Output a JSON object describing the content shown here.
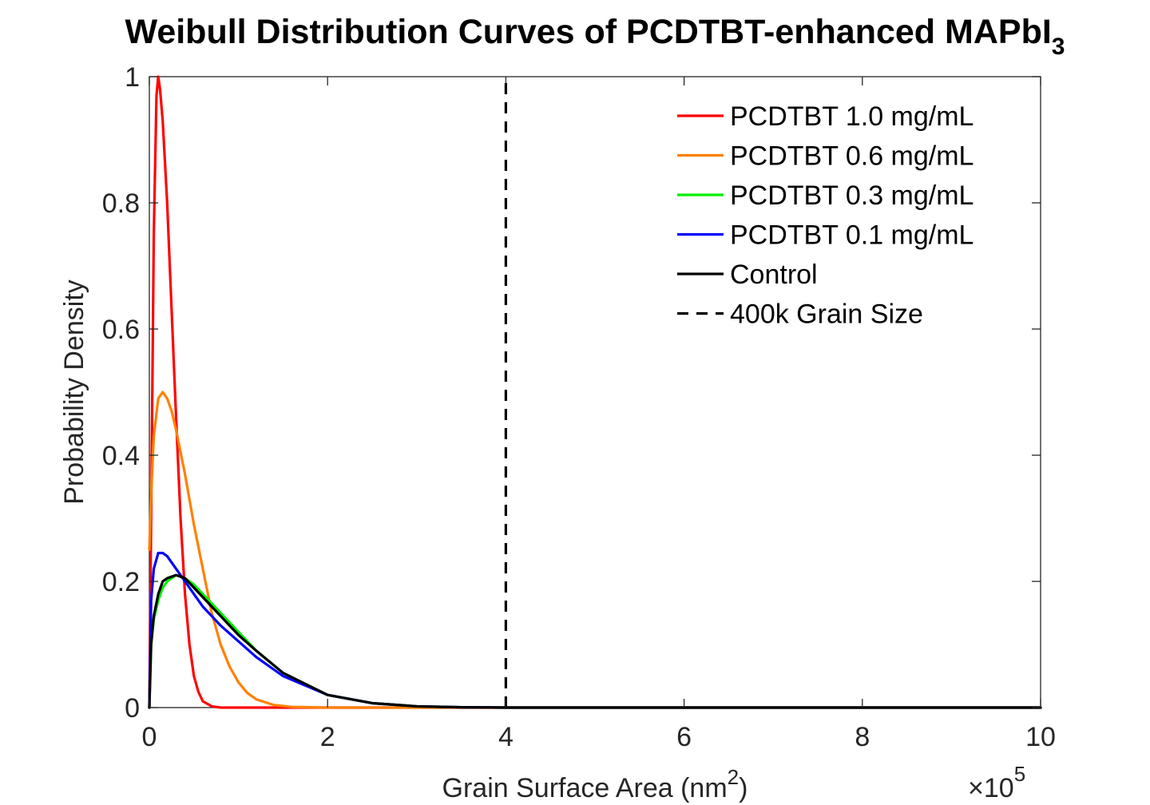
{
  "chart_data": {
    "type": "line",
    "title": "Weibull Distribution Curves of PCDTBT-enhanced MAPbI",
    "title_subscript": "3",
    "xlabel": "Grain Surface Area (nm",
    "xlabel_superscript": "2",
    "xlabel_suffix": ")",
    "x_multiplier_prefix": "×10",
    "x_multiplier_exponent": "5",
    "ylabel": "Probability Density",
    "xlim": [
      0,
      10
    ],
    "ylim": [
      0,
      1
    ],
    "xticks": [
      "0",
      "2",
      "4",
      "6",
      "8",
      "10"
    ],
    "yticks": [
      "0",
      "0.2",
      "0.4",
      "0.6",
      "0.8",
      "1"
    ],
    "grid": false,
    "legend_position": "top-right",
    "series": [
      {
        "name": "PCDTBT 1.0 mg/mL",
        "color": "#ff0000",
        "style": "solid",
        "x": [
          0,
          0.02,
          0.05,
          0.08,
          0.1,
          0.12,
          0.15,
          0.2,
          0.25,
          0.3,
          0.35,
          0.4,
          0.45,
          0.5,
          0.55,
          0.6,
          0.7,
          0.8,
          1.0,
          2.0,
          10.0
        ],
        "y": [
          0,
          0.3,
          0.75,
          0.97,
          1.0,
          0.98,
          0.93,
          0.8,
          0.63,
          0.46,
          0.3,
          0.18,
          0.1,
          0.05,
          0.025,
          0.01,
          0.002,
          0.0,
          0.0,
          0.0,
          0.0
        ]
      },
      {
        "name": "PCDTBT 0.6 mg/mL",
        "color": "#ff8000",
        "style": "solid",
        "x": [
          0,
          0.02,
          0.05,
          0.1,
          0.15,
          0.2,
          0.25,
          0.3,
          0.4,
          0.5,
          0.6,
          0.7,
          0.8,
          0.9,
          1.0,
          1.1,
          1.2,
          1.4,
          1.6,
          2.0,
          10.0
        ],
        "y": [
          0.25,
          0.34,
          0.43,
          0.49,
          0.5,
          0.49,
          0.47,
          0.44,
          0.37,
          0.29,
          0.22,
          0.15,
          0.1,
          0.065,
          0.04,
          0.023,
          0.013,
          0.004,
          0.001,
          0.0,
          0.0
        ]
      },
      {
        "name": "PCDTBT 0.3 mg/mL",
        "color": "#00ee00",
        "style": "solid",
        "x": [
          0,
          0.02,
          0.05,
          0.1,
          0.15,
          0.2,
          0.3,
          0.4,
          0.5,
          0.6,
          0.8,
          1.0,
          1.2,
          1.5,
          2.0,
          2.5,
          3.0,
          3.5,
          4.0,
          10.0
        ],
        "y": [
          0,
          0.1,
          0.14,
          0.17,
          0.19,
          0.2,
          0.21,
          0.205,
          0.195,
          0.18,
          0.15,
          0.12,
          0.09,
          0.055,
          0.02,
          0.007,
          0.002,
          0.0005,
          0.0,
          0.0
        ]
      },
      {
        "name": "PCDTBT 0.1 mg/mL",
        "color": "#0000ff",
        "style": "solid",
        "x": [
          0,
          0.02,
          0.05,
          0.1,
          0.15,
          0.2,
          0.3,
          0.4,
          0.5,
          0.6,
          0.8,
          1.0,
          1.2,
          1.5,
          2.0,
          2.5,
          3.0,
          3.5,
          4.0,
          10.0
        ],
        "y": [
          0,
          0.17,
          0.22,
          0.245,
          0.245,
          0.24,
          0.22,
          0.2,
          0.18,
          0.16,
          0.13,
          0.105,
          0.08,
          0.05,
          0.02,
          0.007,
          0.002,
          0.0005,
          0.0,
          0.0
        ]
      },
      {
        "name": "Control",
        "color": "#000000",
        "style": "solid",
        "x": [
          0,
          0.02,
          0.05,
          0.1,
          0.15,
          0.2,
          0.3,
          0.4,
          0.5,
          0.6,
          0.8,
          1.0,
          1.2,
          1.5,
          2.0,
          2.5,
          3.0,
          3.5,
          4.0,
          10.0
        ],
        "y": [
          0,
          0.1,
          0.145,
          0.18,
          0.2,
          0.205,
          0.21,
          0.205,
          0.19,
          0.175,
          0.145,
          0.115,
          0.09,
          0.055,
          0.02,
          0.007,
          0.002,
          0.0005,
          0.0,
          0.0
        ]
      },
      {
        "name": "400k Grain Size",
        "color": "#000000",
        "style": "dashed",
        "x": [
          4,
          4
        ],
        "y": [
          0,
          1
        ]
      }
    ]
  }
}
